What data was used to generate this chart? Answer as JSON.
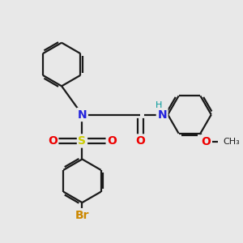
{
  "background_color": "#e8e8e8",
  "bond_color": "#1a1a1a",
  "N_color": "#2222dd",
  "S_color": "#cccc00",
  "O_color": "#ee0000",
  "Br_color": "#cc8800",
  "H_color": "#009999",
  "figsize": [
    3.0,
    3.0
  ],
  "dpi": 100,
  "xlim": [
    0,
    10
  ],
  "ylim": [
    0,
    10
  ]
}
